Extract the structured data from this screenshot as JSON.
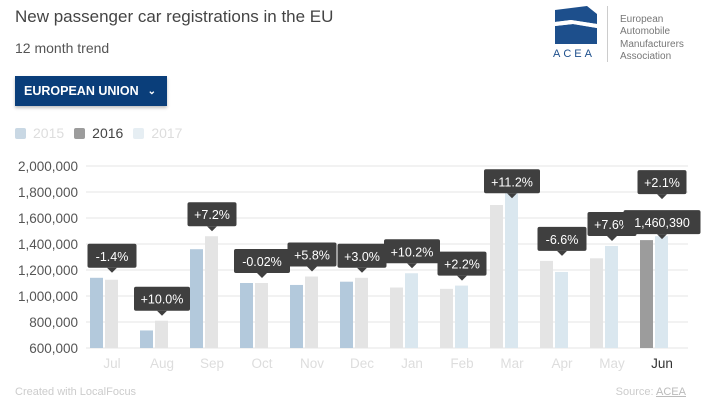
{
  "header": {
    "title": "New passenger car registrations in the EU",
    "subtitle": "12 month trend"
  },
  "dropdown": {
    "label": "EUROPEAN UNION",
    "icon": "chevron-down-icon"
  },
  "logo": {
    "acronym": "ACEA",
    "lines": [
      "European",
      "Automobile",
      "Manufacturers",
      "Association"
    ]
  },
  "footer": {
    "created": "Created with LocalFocus",
    "source_label": "Source:",
    "source_link": "ACEA"
  },
  "colors": {
    "s2015": "#b3c9dc",
    "s2016": "#e4e4e4",
    "s2016_active": "#9c9c9c",
    "s2017": "#dae7ef",
    "tooltip": "#3f3f3f",
    "accent": "#0a3e7a"
  },
  "chart_data": {
    "type": "bar",
    "title": "New passenger car registrations in the EU",
    "legend": [
      {
        "name": "2015",
        "active": false
      },
      {
        "name": "2016",
        "active": true
      },
      {
        "name": "2017",
        "active": false
      }
    ],
    "ylim": [
      600000,
      2000000
    ],
    "yticks": [
      "2,000,000",
      "1,800,000",
      "1,600,000",
      "1,400,000",
      "1,200,000",
      "1,000,000",
      "800,000",
      "600,000"
    ],
    "ytick_values": [
      2000000,
      1800000,
      1600000,
      1400000,
      1200000,
      1000000,
      800000,
      600000
    ],
    "categories": [
      "Jul",
      "Aug",
      "Sep",
      "Oct",
      "Nov",
      "Dec",
      "Jan",
      "Feb",
      "Mar",
      "Apr",
      "May",
      "Jun"
    ],
    "selected_category": "Jun",
    "groups": [
      {
        "a_series": "2015",
        "a": 1140000,
        "b_series": "2016",
        "b": 1125000,
        "change": "-1.4%"
      },
      {
        "a_series": "2015",
        "a": 735000,
        "b_series": "2016",
        "b": 810000,
        "change": "+10.0%"
      },
      {
        "a_series": "2015",
        "a": 1360000,
        "b_series": "2016",
        "b": 1460000,
        "change": "+7.2%"
      },
      {
        "a_series": "2015",
        "a": 1100000,
        "b_series": "2016",
        "b": 1100000,
        "change": "-0.02%"
      },
      {
        "a_series": "2015",
        "a": 1085000,
        "b_series": "2016",
        "b": 1150000,
        "change": "+5.8%"
      },
      {
        "a_series": "2015",
        "a": 1110000,
        "b_series": "2016",
        "b": 1140000,
        "change": "+3.0%"
      },
      {
        "a_series": "2016",
        "a": 1065000,
        "b_series": "2017",
        "b": 1175000,
        "change": "+10.2%"
      },
      {
        "a_series": "2016",
        "a": 1055000,
        "b_series": "2017",
        "b": 1080000,
        "change": "+2.2%"
      },
      {
        "a_series": "2016",
        "a": 1700000,
        "b_series": "2017",
        "b": 1890000,
        "change": "+11.2%"
      },
      {
        "a_series": "2016",
        "a": 1270000,
        "b_series": "2017",
        "b": 1185000,
        "change": "-6.6%"
      },
      {
        "a_series": "2016",
        "a": 1290000,
        "b_series": "2017",
        "b": 1385000,
        "change": "+7.6%"
      },
      {
        "a_series": "2016",
        "a": 1430000,
        "b_series": "2017",
        "b": 1460390,
        "change": "+2.1%",
        "value_label": "1,460,390"
      }
    ]
  }
}
